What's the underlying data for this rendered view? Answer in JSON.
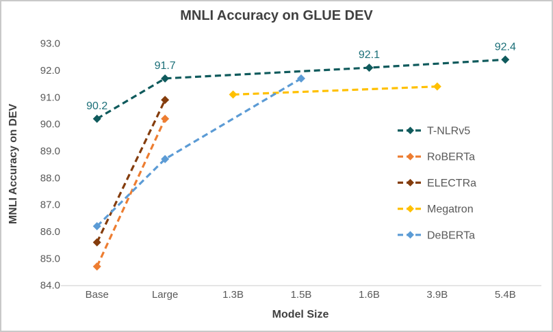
{
  "chart_data": {
    "type": "line",
    "title": "MNLI Accuracy on GLUE DEV",
    "xlabel": "Model Size",
    "ylabel": "MNLI Accuracy on DEV",
    "categories": [
      "Base",
      "Large",
      "1.3B",
      "1.5B",
      "1.6B",
      "3.9B",
      "5.4B"
    ],
    "ylim": [
      84.0,
      93.0
    ],
    "ytick_step": 1.0,
    "ytick_labels": [
      "84.0",
      "85.0",
      "86.0",
      "87.0",
      "88.0",
      "89.0",
      "90.0",
      "91.0",
      "92.0",
      "93.0"
    ],
    "grid": false,
    "line_style": "dashed",
    "marker": "diamond",
    "legend_position": "inside-right",
    "colors": {
      "axis_line": "#d9d9d9",
      "tick_text": "#595959",
      "legend_text": "#595959",
      "title_text": "#404040",
      "data_label_text": "#1b6f78"
    },
    "series": [
      {
        "name": "T-NLRv5",
        "color": "#0f5a5c",
        "points": [
          {
            "x": "Base",
            "y": 90.2,
            "label": "90.2"
          },
          {
            "x": "Large",
            "y": 91.7,
            "label": "91.7"
          },
          {
            "x": "1.6B",
            "y": 92.1,
            "label": "92.1"
          },
          {
            "x": "5.4B",
            "y": 92.4,
            "label": "92.4"
          }
        ]
      },
      {
        "name": "RoBERTa",
        "color": "#ed7d31",
        "points": [
          {
            "x": "Base",
            "y": 84.7
          },
          {
            "x": "Large",
            "y": 90.2
          }
        ]
      },
      {
        "name": "ELECTRa",
        "color": "#843c0c",
        "points": [
          {
            "x": "Base",
            "y": 85.6
          },
          {
            "x": "Large",
            "y": 90.9
          }
        ]
      },
      {
        "name": "Megatron",
        "color": "#ffc000",
        "points": [
          {
            "x": "1.3B",
            "y": 91.1
          },
          {
            "x": "3.9B",
            "y": 91.4
          }
        ]
      },
      {
        "name": "DeBERTa",
        "color": "#5b9bd5",
        "points": [
          {
            "x": "Base",
            "y": 86.2
          },
          {
            "x": "Large",
            "y": 88.7
          },
          {
            "x": "1.5B",
            "y": 91.7
          }
        ]
      }
    ]
  }
}
